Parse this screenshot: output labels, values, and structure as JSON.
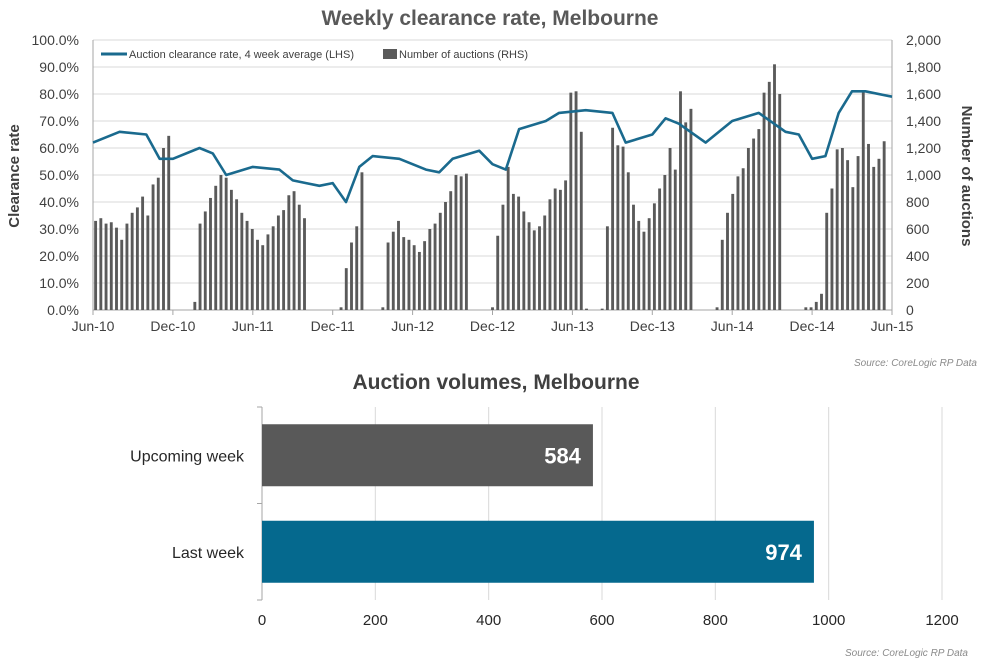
{
  "chart_data": [
    {
      "type": "line",
      "title": "Weekly clearance rate, Melbourne",
      "ylabel": "Clearance rate",
      "ylabel_right": "Number of auctions",
      "x_tick_labels": [
        "Jun-10",
        "Dec-10",
        "Jun-11",
        "Dec-11",
        "Jun-12",
        "Dec-12",
        "Jun-13",
        "Dec-13",
        "Jun-14",
        "Dec-14",
        "Jun-15"
      ],
      "y_left_ticks": [
        "0.0%",
        "10.0%",
        "20.0%",
        "30.0%",
        "40.0%",
        "50.0%",
        "60.0%",
        "70.0%",
        "80.0%",
        "90.0%",
        "100.0%"
      ],
      "y_right_ticks": [
        "0",
        "200",
        "400",
        "600",
        "800",
        "1,000",
        "1,200",
        "1,400",
        "1,600",
        "1,800",
        "2,000"
      ],
      "ylim": [
        0,
        100
      ],
      "ylim_right": [
        0,
        2000
      ],
      "legend_position": "top-left",
      "source": "Source: CoreLogic  RP Data",
      "series": [
        {
          "name": "Auction clearance rate, 4 week average (LHS)",
          "kind": "line",
          "color": "#1a6a8e",
          "x": [
            "Jun-10",
            "Aug-10",
            "Oct-10",
            "Nov-10",
            "Dec-10",
            "Feb-11",
            "Mar-11",
            "Apr-11",
            "Jun-11",
            "Aug-11",
            "Sep-11",
            "Oct-11",
            "Nov-11",
            "Dec-11",
            "Jan-12",
            "Feb-12",
            "Mar-12",
            "May-12",
            "Jul-12",
            "Aug-12",
            "Sep-12",
            "Nov-12",
            "Dec-12",
            "Jan-13",
            "Feb-13",
            "Apr-13",
            "May-13",
            "Jul-13",
            "Sep-13",
            "Oct-13",
            "Dec-13",
            "Jan-14",
            "Feb-14",
            "Apr-14",
            "Jun-14",
            "Aug-14",
            "Oct-14",
            "Nov-14",
            "Dec-14",
            "Jan-15",
            "Feb-15",
            "Mar-15",
            "Apr-15",
            "Jun-15"
          ],
          "values": [
            62,
            66,
            65,
            56,
            56,
            60,
            58,
            50,
            53,
            52,
            48,
            47,
            46,
            47,
            40,
            53,
            57,
            56,
            52,
            51,
            56,
            59,
            54,
            52,
            67,
            70,
            73,
            74,
            73,
            62,
            65,
            71,
            69,
            62,
            70,
            73,
            66,
            65,
            56,
            57,
            73,
            81,
            81,
            79
          ]
        },
        {
          "name": "Number of auctions (RHS)",
          "kind": "bar",
          "color": "#5a5a5a",
          "x_range": [
            "Jun-10",
            "Jun-15"
          ],
          "values": [
            660,
            680,
            640,
            650,
            610,
            520,
            640,
            720,
            760,
            840,
            700,
            930,
            980,
            1200,
            1290,
            0,
            0,
            0,
            0,
            60,
            640,
            730,
            830,
            920,
            1000,
            980,
            890,
            820,
            720,
            660,
            600,
            520,
            480,
            560,
            620,
            700,
            740,
            850,
            880,
            780,
            680,
            0,
            0,
            0,
            0,
            0,
            0,
            20,
            310,
            500,
            620,
            1020,
            0,
            0,
            0,
            20,
            500,
            580,
            660,
            540,
            520,
            480,
            430,
            510,
            600,
            640,
            720,
            800,
            880,
            1000,
            990,
            1010,
            0,
            0,
            0,
            0,
            20,
            550,
            780,
            1060,
            860,
            840,
            730,
            650,
            590,
            620,
            700,
            820,
            900,
            890,
            960,
            1610,
            1620,
            1320,
            10,
            0,
            0,
            10,
            620,
            1350,
            1220,
            1210,
            1020,
            780,
            660,
            580,
            680,
            790,
            900,
            1000,
            1200,
            1040,
            1620,
            1390,
            1490,
            0,
            0,
            0,
            0,
            20,
            520,
            720,
            860,
            990,
            1050,
            1200,
            1270,
            1340,
            1610,
            1690,
            1820,
            1600,
            0,
            0,
            0,
            0,
            20,
            20,
            60,
            120,
            720,
            900,
            1190,
            1200,
            1110,
            910,
            1140,
            1620,
            1230,
            1060,
            1120,
            1250,
            0
          ]
        }
      ]
    },
    {
      "type": "bar",
      "orientation": "horizontal",
      "title": "Auction volumes, Melbourne",
      "categories": [
        "Upcoming week",
        "Last week"
      ],
      "values": [
        584,
        974
      ],
      "colors": [
        "#595959",
        "#05698e"
      ],
      "x_ticks": [
        "0",
        "200",
        "400",
        "600",
        "800",
        "1000",
        "1200"
      ],
      "xlim": [
        0,
        1200
      ],
      "source": "Source: CoreLogic  RP Data"
    }
  ]
}
